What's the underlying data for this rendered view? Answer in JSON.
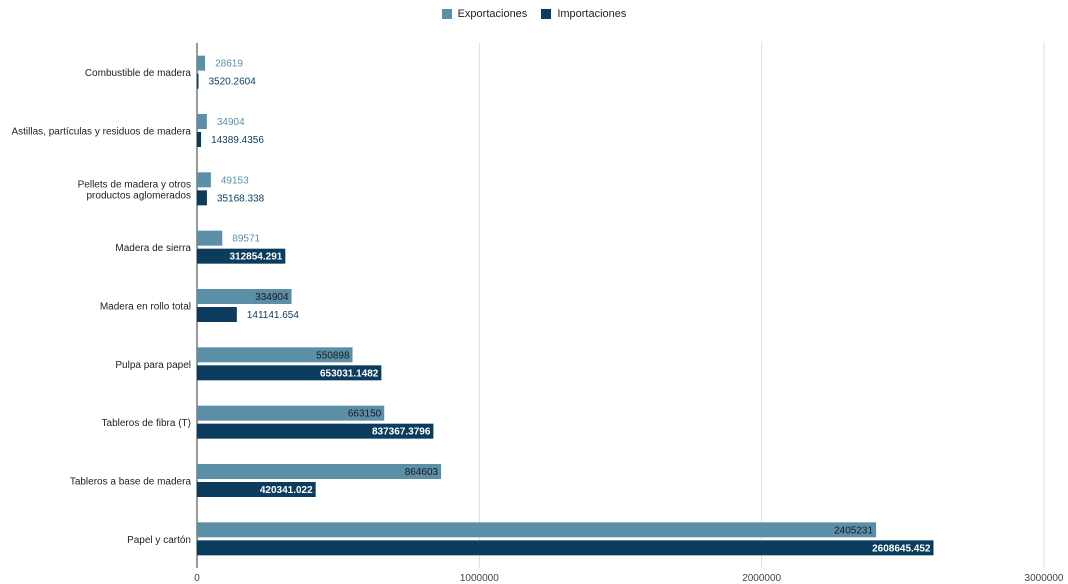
{
  "chart_data": {
    "type": "bar",
    "orientation": "horizontal",
    "categories": [
      "Combustible de madera",
      "Astillas, partículas y residuos de madera",
      "Pellets de madera y otros productos aglomerados",
      "Madera de sierra",
      "Madera en rollo total",
      "Pulpa para papel",
      "Tableros de fibra (T)",
      "Tableros a base de madera",
      "Papel y cartón"
    ],
    "series": [
      {
        "name": "Exportaciones",
        "color": "#5b8fa8",
        "values": [
          28619,
          34904,
          49153,
          89571,
          334904,
          550898,
          663150,
          864603,
          2405231
        ],
        "labels": [
          "28619",
          "34904",
          "49153",
          "89571",
          "334904",
          "550898",
          "663150",
          "864603",
          "2405231"
        ]
      },
      {
        "name": "Importaciones",
        "color": "#0b3c5d",
        "values": [
          3520.2604,
          14389.4356,
          35168.338,
          312854.291,
          141141.654,
          653031.1482,
          837367.3796,
          420341.022,
          2608645.452
        ],
        "labels": [
          "3520.2604",
          "14389.4356",
          "35168.338",
          "312854.291",
          "141141.654",
          "653031.1482",
          "837367.3796",
          "420341.022",
          "2608645.452"
        ]
      }
    ],
    "xlim": [
      0,
      3000000
    ],
    "xticks": [
      "0",
      "1000000",
      "2000000",
      "3000000"
    ],
    "grid": true,
    "legend_position": "top-center",
    "title": "",
    "xlabel": "",
    "ylabel": ""
  },
  "legend": {
    "exportaciones": "Exportaciones",
    "importaciones": "Importaciones"
  }
}
